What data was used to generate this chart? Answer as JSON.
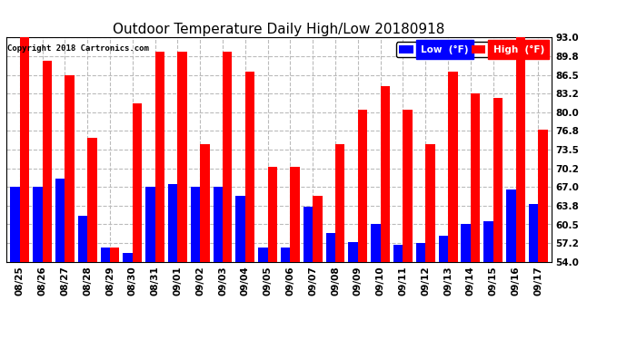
{
  "title": "Outdoor Temperature Daily High/Low 20180918",
  "copyright": "Copyright 2018 Cartronics.com",
  "dates": [
    "08/25",
    "08/26",
    "08/27",
    "08/28",
    "08/29",
    "08/30",
    "08/31",
    "09/01",
    "09/02",
    "09/03",
    "09/04",
    "09/05",
    "09/06",
    "09/07",
    "09/08",
    "09/09",
    "09/10",
    "09/11",
    "09/12",
    "09/13",
    "09/14",
    "09/15",
    "09/16",
    "09/17"
  ],
  "high": [
    93.0,
    88.9,
    86.5,
    75.5,
    56.5,
    81.5,
    90.5,
    90.5,
    74.5,
    90.5,
    87.0,
    70.5,
    70.5,
    65.5,
    74.5,
    80.5,
    84.5,
    80.5,
    74.5,
    87.0,
    83.2,
    82.5,
    93.0,
    77.0
  ],
  "low": [
    67.0,
    67.0,
    68.5,
    62.0,
    56.5,
    55.5,
    67.0,
    67.5,
    67.0,
    67.0,
    65.5,
    56.5,
    56.5,
    63.5,
    59.0,
    57.5,
    60.5,
    57.0,
    57.2,
    58.5,
    60.5,
    61.0,
    66.5,
    64.0
  ],
  "ylim": [
    54.0,
    93.0
  ],
  "yticks": [
    54.0,
    57.2,
    60.5,
    63.8,
    67.0,
    70.2,
    73.5,
    76.8,
    80.0,
    83.2,
    86.5,
    89.8,
    93.0
  ],
  "high_color": "#ff0000",
  "low_color": "#0000ff",
  "bg_color": "#ffffff",
  "grid_color": "#bbbbbb",
  "title_fontsize": 11,
  "tick_fontsize": 7.5,
  "legend_low_label": "Low  (°F)",
  "legend_high_label": "High  (°F)"
}
